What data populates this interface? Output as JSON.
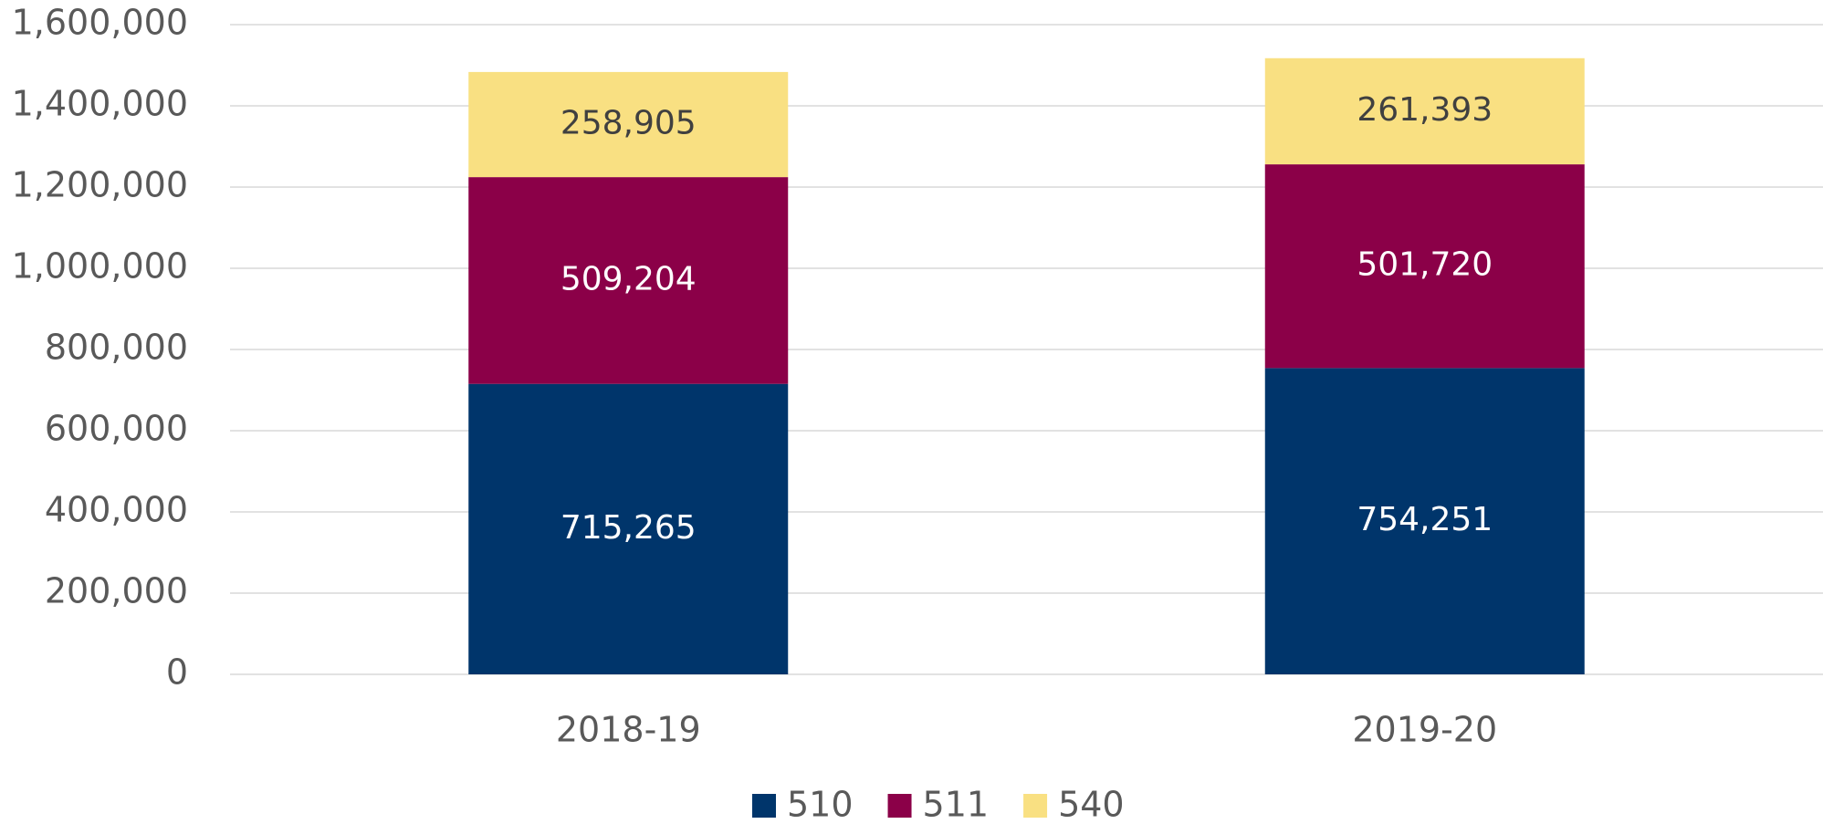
{
  "chart_data": {
    "type": "stacked_bar",
    "categories": [
      "2018-19",
      "2019-20"
    ],
    "series": [
      {
        "name": "510",
        "color": "#00356b",
        "values": [
          715265,
          754251
        ],
        "value_labels": [
          "715,265",
          "754,251"
        ]
      },
      {
        "name": "511",
        "color": "#8b0048",
        "values": [
          509204,
          501720
        ],
        "value_labels": [
          "509,204",
          "501,720"
        ]
      },
      {
        "name": "540",
        "color": "#f9e082",
        "values": [
          258905,
          261393
        ],
        "value_labels": [
          "258,905",
          "261,393"
        ]
      }
    ],
    "ylim": [
      0,
      1600000
    ],
    "yticks": [
      0,
      {
        "value": 200000,
        "label": "200,000"
      },
      {
        "value": 400000,
        "label": "400,000"
      },
      {
        "value": 600000,
        "label": "600,000"
      },
      {
        "value": 800000,
        "label": "800,000"
      },
      {
        "value": 1000000,
        "label": "1,000,000"
      },
      {
        "value": 1200000,
        "label": "1,200,000"
      },
      {
        "value": 1400000,
        "label": "1,400,000"
      },
      {
        "value": 1600000,
        "label": "1,600,000"
      }
    ],
    "grid": true,
    "legend": "bottom"
  }
}
